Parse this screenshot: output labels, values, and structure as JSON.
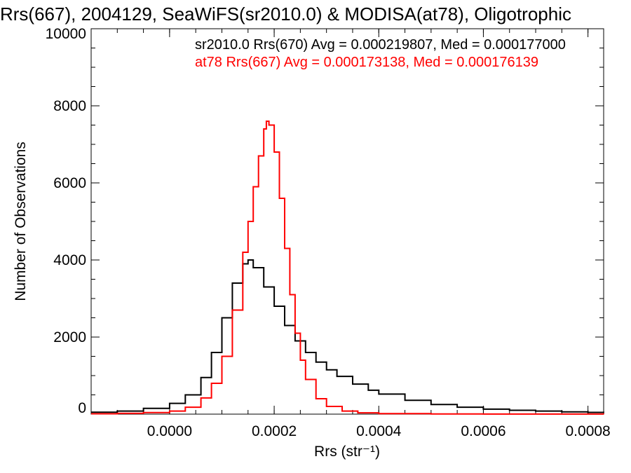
{
  "chart_data": {
    "type": "line",
    "title": "Rrs(667), 2004129, SeaWiFS(sr2010.0) & MODISA(at78), Oligotrophic",
    "xlabel": "Rrs (str⁻¹)",
    "ylabel": "Number of Observations",
    "xlim": [
      -0.00015,
      0.00083
    ],
    "ylim": [
      0,
      10000
    ],
    "x_ticks": [
      0.0,
      0.0002,
      0.0004,
      0.0006,
      0.0008
    ],
    "x_tick_labels": [
      "0.0000",
      "0.0002",
      "0.0004",
      "0.0006",
      "0.0008"
    ],
    "y_ticks": [
      0,
      2000,
      4000,
      6000,
      8000,
      10000
    ],
    "y_tick_labels": [
      "0",
      "2000",
      "4000",
      "6000",
      "8000",
      "10000"
    ],
    "grid": false,
    "legend_position": "top-right",
    "series": [
      {
        "name": "sr2010.0 Rrs(670)",
        "label": "sr2010.0 Rrs(670) Avg = 0.000219807, Med = 0.000177000",
        "color": "#000000",
        "points": [
          [
            -0.00015,
            50
          ],
          [
            -0.0001,
            80
          ],
          [
            -5e-05,
            150
          ],
          [
            0.0,
            280
          ],
          [
            3e-05,
            500
          ],
          [
            6e-05,
            950
          ],
          [
            8e-05,
            1600
          ],
          [
            0.0001,
            2500
          ],
          [
            0.00012,
            3400
          ],
          [
            0.00014,
            3900
          ],
          [
            0.00015,
            4000
          ],
          [
            0.00016,
            3800
          ],
          [
            0.00018,
            3300
          ],
          [
            0.0002,
            2800
          ],
          [
            0.00022,
            2300
          ],
          [
            0.00024,
            1900
          ],
          [
            0.00026,
            1600
          ],
          [
            0.00028,
            1350
          ],
          [
            0.0003,
            1150
          ],
          [
            0.00032,
            980
          ],
          [
            0.00035,
            780
          ],
          [
            0.00038,
            620
          ],
          [
            0.0004,
            520
          ],
          [
            0.00045,
            360
          ],
          [
            0.0005,
            250
          ],
          [
            0.00055,
            180
          ],
          [
            0.0006,
            130
          ],
          [
            0.00065,
            100
          ],
          [
            0.0007,
            80
          ],
          [
            0.00075,
            60
          ],
          [
            0.0008,
            45
          ],
          [
            0.00083,
            40
          ]
        ]
      },
      {
        "name": "at78 Rrs(667)",
        "label": "at78 Rrs(667) Avg = 0.000173138, Med = 0.000176139",
        "color": "#ff0000",
        "points": [
          [
            -0.00015,
            10
          ],
          [
            -0.0001,
            20
          ],
          [
            -5e-05,
            40
          ],
          [
            0.0,
            80
          ],
          [
            3e-05,
            180
          ],
          [
            6e-05,
            420
          ],
          [
            8e-05,
            800
          ],
          [
            0.0001,
            1500
          ],
          [
            0.00012,
            2700
          ],
          [
            0.00014,
            4200
          ],
          [
            0.00015,
            5000
          ],
          [
            0.00016,
            5900
          ],
          [
            0.00017,
            6700
          ],
          [
            0.00018,
            7400
          ],
          [
            0.000185,
            7600
          ],
          [
            0.00019,
            7500
          ],
          [
            0.0002,
            6800
          ],
          [
            0.00021,
            5600
          ],
          [
            0.00022,
            4300
          ],
          [
            0.00023,
            3100
          ],
          [
            0.00024,
            2100
          ],
          [
            0.00025,
            1400
          ],
          [
            0.00026,
            900
          ],
          [
            0.00028,
            400
          ],
          [
            0.0003,
            200
          ],
          [
            0.00033,
            80
          ],
          [
            0.00036,
            35
          ],
          [
            0.0004,
            15
          ],
          [
            0.0005,
            5
          ],
          [
            0.0006,
            2
          ],
          [
            0.00083,
            0
          ]
        ]
      }
    ]
  }
}
